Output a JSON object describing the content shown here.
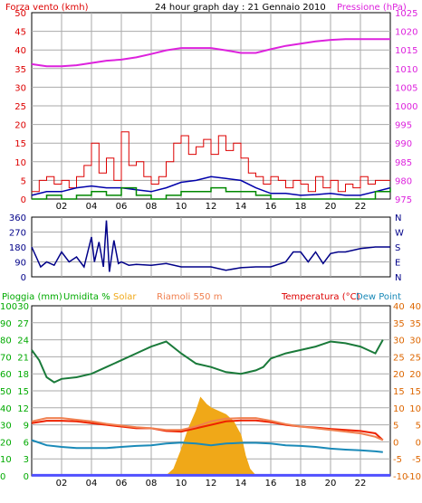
{
  "header": {
    "left_title": "Forza vento (kmh)",
    "center_title": "24 hour graph day : 21 Gennaio 2010",
    "right_title": "Pressione (hPa)"
  },
  "colors": {
    "wind_gust": "#dd0000",
    "wind_avg": "#0000aa",
    "wind_green": "#008800",
    "pressure": "#dd22dd",
    "direction": "#000088",
    "humidity": "#1a7a3a",
    "solar": "#f0a818",
    "dewpoint": "#1a8ab8",
    "temperature": "#ee2200",
    "riamoli": "#f08050",
    "rain": "#5050ff",
    "left_axis_red": "#dd0000",
    "left_axis_green": "#00aa00",
    "right_axis_magenta": "#dd22dd",
    "right_axis_orange": "#dd6600",
    "grid": "#aaaaaa"
  },
  "chart_data": [
    {
      "type": "line",
      "name": "wind-pressure",
      "x_ticks": [
        "02",
        "04",
        "06",
        "08",
        "10",
        "12",
        "14",
        "16",
        "18",
        "20",
        "22"
      ],
      "left_ticks": [
        "50",
        "45",
        "40",
        "35",
        "30",
        "25",
        "20",
        "15",
        "10",
        "5",
        "0"
      ],
      "right_ticks": [
        "1025",
        "1020",
        "1015",
        "1010",
        "1005",
        "1000",
        "995",
        "990",
        "985",
        "980",
        "975"
      ],
      "ylim_left": [
        0,
        50
      ],
      "ylim_right": [
        975,
        1025
      ],
      "x_range": [
        0,
        24
      ],
      "series": [
        {
          "key": "pressure",
          "axis": "right",
          "x": [
            0,
            1,
            2,
            3,
            4,
            5,
            6,
            7,
            8,
            9,
            10,
            11,
            12,
            13,
            14,
            15,
            16,
            17,
            18,
            19,
            20,
            21,
            22,
            23,
            24
          ],
          "values": [
            1011.2,
            1010.6,
            1010.6,
            1010.9,
            1011.5,
            1012.1,
            1012.4,
            1013.0,
            1013.9,
            1014.9,
            1015.5,
            1015.5,
            1015.5,
            1014.9,
            1014.2,
            1014.2,
            1015.2,
            1016.1,
            1016.7,
            1017.3,
            1017.7,
            1017.9,
            1017.9,
            1017.9,
            1017.9
          ]
        },
        {
          "key": "wind_gust",
          "axis": "left",
          "x": [
            0,
            0.5,
            1,
            1.5,
            2,
            2.5,
            3,
            3.5,
            4,
            4.5,
            5,
            5.5,
            6,
            6.5,
            7,
            7.5,
            8,
            8.5,
            9,
            9.5,
            10,
            10.5,
            11,
            11.5,
            12,
            12.5,
            13,
            13.5,
            14,
            14.5,
            15,
            15.5,
            16,
            16.5,
            17,
            17.5,
            18,
            18.5,
            19,
            19.5,
            20,
            20.5,
            21,
            21.5,
            22,
            22.5,
            23,
            23.5
          ],
          "values": [
            2,
            5,
            6,
            4,
            5,
            3,
            6,
            9,
            15,
            7,
            11,
            5,
            18,
            9,
            10,
            6,
            4,
            6,
            10,
            15,
            17,
            12,
            14,
            16,
            12,
            17,
            13,
            15,
            11,
            7,
            6,
            4,
            6,
            5,
            3,
            5,
            4,
            2,
            6,
            3,
            5,
            2,
            4,
            3,
            6,
            4,
            5,
            5
          ]
        },
        {
          "key": "wind_avg",
          "axis": "left",
          "x": [
            0,
            1,
            2,
            3,
            4,
            5,
            6,
            7,
            8,
            9,
            10,
            11,
            12,
            13,
            14,
            15,
            16,
            17,
            18,
            19,
            20,
            21,
            22,
            23,
            24
          ],
          "values": [
            1,
            2,
            2,
            3,
            3.5,
            3,
            3,
            2.5,
            2,
            3,
            4.5,
            5,
            6,
            5.5,
            5,
            3,
            1.5,
            1.5,
            1,
            1.2,
            1.5,
            1,
            1,
            2,
            3
          ]
        },
        {
          "key": "wind_green",
          "axis": "left",
          "x": [
            0,
            1,
            2,
            3,
            4,
            5,
            6,
            7,
            8,
            9,
            10,
            11,
            12,
            13,
            14,
            15,
            16,
            17,
            18,
            19,
            20,
            21,
            22,
            23,
            24
          ],
          "values": [
            0,
            1,
            0,
            1,
            2,
            1,
            3,
            1,
            0,
            1,
            2,
            2,
            3,
            2,
            2,
            1,
            0,
            0,
            0,
            0,
            0,
            0,
            0,
            2,
            3
          ]
        }
      ]
    },
    {
      "type": "line",
      "name": "wind-direction",
      "x_ticks": [
        "02",
        "04",
        "06",
        "08",
        "10",
        "12",
        "14",
        "16",
        "18",
        "20",
        "22"
      ],
      "left_ticks": [
        "360",
        "270",
        "180",
        "90",
        "0"
      ],
      "right_ticks": [
        "N",
        "W",
        "S",
        "E",
        "N"
      ],
      "ylim": [
        0,
        360
      ],
      "series": [
        {
          "key": "direction",
          "x": [
            0,
            0.3,
            0.6,
            1,
            1.5,
            2,
            2.5,
            3,
            3.5,
            4,
            4.2,
            4.5,
            4.8,
            5,
            5.2,
            5.5,
            5.8,
            6,
            6.5,
            7,
            8,
            9,
            10,
            11,
            12,
            13,
            14,
            15,
            16,
            17,
            17.5,
            18,
            18.5,
            19,
            19.5,
            20,
            20.5,
            21,
            22,
            23,
            24
          ],
          "values": [
            180,
            120,
            60,
            90,
            70,
            150,
            90,
            120,
            60,
            240,
            90,
            210,
            60,
            340,
            30,
            220,
            80,
            90,
            70,
            75,
            70,
            80,
            60,
            60,
            60,
            40,
            55,
            60,
            60,
            90,
            150,
            150,
            90,
            150,
            80,
            140,
            150,
            150,
            170,
            180,
            180
          ]
        }
      ]
    },
    {
      "type": "line",
      "name": "rain-humidity-solar-temperature",
      "x_ticks": [
        "02",
        "04",
        "06",
        "08",
        "10",
        "12",
        "14",
        "16",
        "18",
        "20",
        "22"
      ],
      "top_labels": {
        "rain": "Pioggia (mm)",
        "humidity": "Umidita %",
        "solar": "Solar",
        "riamoli": "Riamoli 550 m",
        "temperature": "Temperatura (°C)",
        "dewpoint": "Dew Point"
      },
      "ticks_pct": [
        "100",
        "90",
        "80",
        "70",
        "60",
        "50",
        "40",
        "30",
        "20",
        "10",
        "0"
      ],
      "ticks_rain": [
        "30",
        "27",
        "24",
        "21",
        "18",
        "15",
        "12",
        "9",
        "6",
        "3",
        "0"
      ],
      "ticks_temp_red": [
        "40",
        "35",
        "30",
        "25",
        "20",
        "15",
        "10",
        "5",
        "0",
        "-5",
        "-10"
      ],
      "ticks_temp_blue": [
        "40",
        "35",
        "30",
        "25",
        "20",
        "15",
        "10",
        "5",
        "0",
        "-5",
        "-10"
      ],
      "ylim_pct": [
        0,
        100
      ],
      "ylim_temp": [
        -10,
        40
      ],
      "series": [
        {
          "key": "humidity",
          "x": [
            0,
            0.5,
            1,
            1.5,
            2,
            3,
            4,
            5,
            6,
            7,
            8,
            9,
            10,
            11,
            12,
            13,
            14,
            15,
            15.5,
            16,
            17,
            18,
            19,
            20,
            21,
            22,
            22.5,
            23,
            23.5
          ],
          "values": [
            74,
            68,
            58,
            55,
            57,
            58,
            60,
            64,
            68,
            72,
            76,
            79,
            72,
            66,
            64,
            61,
            60,
            62,
            64,
            69,
            72,
            74,
            76,
            79,
            78,
            76,
            74,
            72,
            80
          ]
        },
        {
          "key": "temperature",
          "x": [
            0,
            1,
            2,
            3,
            4,
            5,
            6,
            7,
            8,
            9,
            10,
            11,
            12,
            13,
            14,
            15,
            16,
            17,
            18,
            19,
            20,
            21,
            22,
            23,
            23.5
          ],
          "values": [
            5.5,
            6.2,
            6.2,
            6.0,
            5.5,
            5.0,
            4.5,
            4.0,
            4.0,
            3.2,
            3.0,
            4.0,
            5.0,
            6.0,
            6.3,
            6.3,
            5.8,
            5.0,
            4.5,
            4.2,
            3.8,
            3.5,
            3.2,
            2.5,
            0.5
          ]
        },
        {
          "key": "riamoli",
          "x": [
            0,
            1,
            2,
            3,
            4,
            5,
            6,
            7,
            8,
            9,
            10,
            11,
            12,
            13,
            14,
            15,
            16,
            17,
            18,
            19,
            20,
            21,
            22,
            23,
            23.5
          ],
          "values": [
            6.0,
            7.0,
            7.0,
            6.5,
            6.0,
            5.3,
            4.8,
            4.3,
            4.0,
            3.5,
            3.5,
            4.5,
            6.0,
            6.8,
            7.0,
            7.0,
            6.2,
            5.2,
            4.5,
            4.0,
            3.5,
            3.0,
            2.5,
            1.5,
            0.5
          ]
        },
        {
          "key": "dewpoint",
          "x": [
            0,
            1,
            2,
            3,
            4,
            5,
            6,
            7,
            8,
            9,
            10,
            11,
            12,
            13,
            14,
            15,
            16,
            17,
            18,
            19,
            20,
            21,
            22,
            23,
            23.5
          ],
          "values": [
            0.5,
            -1.0,
            -1.5,
            -1.8,
            -1.8,
            -1.8,
            -1.5,
            -1.2,
            -1.0,
            -0.5,
            -0.2,
            -0.5,
            -1.0,
            -0.5,
            -0.3,
            -0.3,
            -0.5,
            -1.0,
            -1.2,
            -1.5,
            -2.0,
            -2.3,
            -2.5,
            -2.8,
            -3.0
          ]
        },
        {
          "key": "solar",
          "x": [
            9.0,
            9.5,
            10.0,
            10.5,
            11.0,
            11.3,
            11.7,
            12.0,
            12.5,
            13.0,
            13.5,
            14.0,
            14.3,
            14.6,
            15.0
          ],
          "values": [
            0,
            4,
            15,
            28,
            38,
            46,
            42,
            40,
            38,
            36,
            32,
            24,
            12,
            4,
            0
          ]
        },
        {
          "key": "rain",
          "x": [
            0,
            24
          ],
          "values": [
            0.3,
            0.3
          ]
        }
      ]
    }
  ]
}
